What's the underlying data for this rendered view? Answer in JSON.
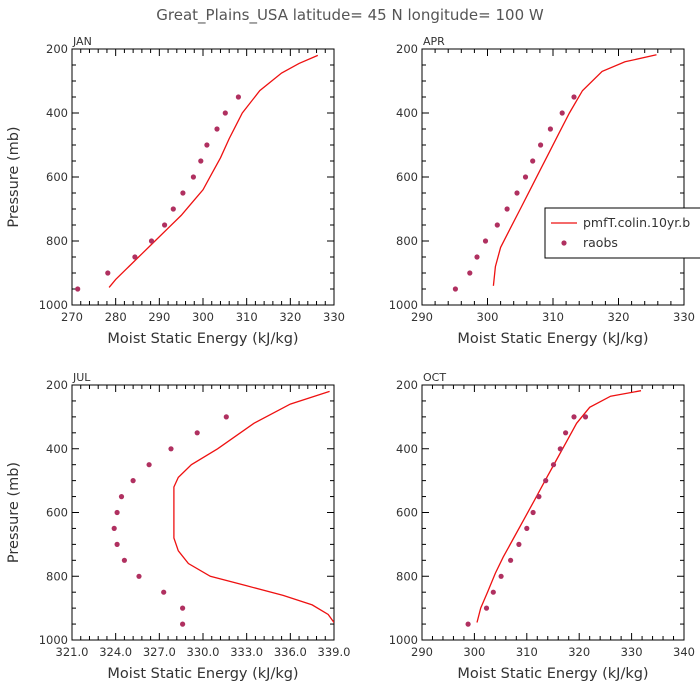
{
  "figure": {
    "title": "Great_Plains_USA   latitude=  45 N longitude=  100 W",
    "model_color": "#ee1111",
    "obs_color": "#b03060"
  },
  "chart_data": [
    {
      "type": "scatter",
      "panel_label": "JAN",
      "xlabel": "Moist Static Energy (kJ/kg)",
      "ylabel": "Pressure (mb)",
      "xlim": [
        270,
        330
      ],
      "ylim": [
        1000,
        200
      ],
      "y_reversed": true,
      "xticks": [
        270,
        280,
        290,
        300,
        310,
        320,
        330
      ],
      "xtick_labels": [
        "270",
        "280",
        "290",
        "300",
        "310",
        "320",
        "330"
      ],
      "yticks": [
        200,
        400,
        600,
        800,
        1000
      ],
      "ytick_labels": [
        "200",
        "400",
        "600",
        "800",
        "1000"
      ],
      "series": [
        {
          "name": "pmfT.colin.10yr.b",
          "kind": "line",
          "x": [
            278.5,
            280,
            283,
            286,
            289,
            292,
            295,
            297.5,
            300,
            302,
            304,
            306,
            309,
            313,
            318,
            322,
            326.3
          ],
          "y": [
            945,
            920,
            880,
            840,
            800,
            760,
            720,
            680,
            640,
            590,
            540,
            480,
            400,
            330,
            275,
            245,
            220
          ]
        },
        {
          "name": "raobs",
          "kind": "points",
          "x": [
            271.3,
            278.2,
            284.4,
            288.2,
            291.2,
            293.2,
            295.4,
            297.8,
            299.5,
            300.9,
            303.2,
            305.1,
            308.1
          ],
          "y": [
            950,
            900,
            850,
            800,
            750,
            700,
            650,
            600,
            550,
            500,
            450,
            400,
            350
          ]
        }
      ]
    },
    {
      "type": "scatter",
      "panel_label": "APR",
      "xlabel": "Moist Static Energy (kJ/kg)",
      "ylabel": "",
      "xlim": [
        290,
        330
      ],
      "ylim": [
        1000,
        200
      ],
      "y_reversed": true,
      "xticks": [
        290,
        300,
        310,
        320,
        330
      ],
      "xtick_labels": [
        "290",
        "300",
        "310",
        "320",
        "330"
      ],
      "yticks": [
        200,
        400,
        600,
        800,
        1000
      ],
      "ytick_labels": [
        "200",
        "400",
        "600",
        "800",
        "1000"
      ],
      "legend": {
        "placement": "right",
        "entries": [
          {
            "label": "pmfT.colin.10yr.b",
            "kind": "line"
          },
          {
            "label": "raobs",
            "kind": "points"
          }
        ]
      },
      "series": [
        {
          "name": "pmfT.colin.10yr.b",
          "kind": "line",
          "x": [
            300.9,
            301.2,
            302,
            303.5,
            305,
            306.5,
            308,
            309.5,
            311,
            312.5,
            314.5,
            317.5,
            321,
            325.8
          ],
          "y": [
            940,
            880,
            820,
            760,
            700,
            640,
            580,
            520,
            460,
            400,
            330,
            270,
            240,
            218
          ]
        },
        {
          "name": "raobs",
          "kind": "points",
          "x": [
            295.1,
            297.3,
            298.4,
            299.7,
            301.5,
            303.0,
            304.5,
            305.8,
            306.9,
            308.1,
            309.6,
            311.4,
            313.2
          ],
          "y": [
            950,
            900,
            850,
            800,
            750,
            700,
            650,
            600,
            550,
            500,
            450,
            400,
            350
          ]
        }
      ]
    },
    {
      "type": "scatter",
      "panel_label": "JUL",
      "xlabel": "Moist Static Energy (kJ/kg)",
      "ylabel": "Pressure (mb)",
      "xlim": [
        321,
        339
      ],
      "ylim": [
        1000,
        200
      ],
      "y_reversed": true,
      "xticks": [
        321,
        324,
        327,
        330,
        333,
        336,
        339
      ],
      "xtick_labels": [
        "321.0",
        "324.0",
        "327.0",
        "330.0",
        "333.0",
        "336.0",
        "339.0"
      ],
      "yticks": [
        200,
        400,
        600,
        800,
        1000
      ],
      "ytick_labels": [
        "200",
        "400",
        "600",
        "800",
        "1000"
      ],
      "series": [
        {
          "name": "pmfT.colin.10yr.b",
          "kind": "line",
          "x": [
            339,
            338.6,
            337.5,
            335.5,
            333,
            330.5,
            329,
            328.3,
            328.0,
            328.0,
            328.0,
            328.3,
            329.2,
            331,
            333.5,
            336,
            338.7
          ],
          "y": [
            945,
            920,
            890,
            860,
            830,
            800,
            760,
            720,
            680,
            600,
            520,
            490,
            450,
            400,
            320,
            260,
            220
          ]
        },
        {
          "name": "raobs",
          "kind": "points",
          "x": [
            328.6,
            328.6,
            327.3,
            325.6,
            324.6,
            324.1,
            323.9,
            324.1,
            324.4,
            325.2,
            326.3,
            327.8,
            329.6,
            331.6
          ],
          "y": [
            950,
            900,
            850,
            800,
            750,
            700,
            650,
            600,
            550,
            500,
            450,
            400,
            350,
            300
          ]
        }
      ]
    },
    {
      "type": "scatter",
      "panel_label": "OCT",
      "xlabel": "Moist Static Energy (kJ/kg)",
      "ylabel": "",
      "xlim": [
        290,
        340
      ],
      "ylim": [
        1000,
        200
      ],
      "y_reversed": true,
      "xticks": [
        290,
        300,
        310,
        320,
        330,
        340
      ],
      "xtick_labels": [
        "290",
        "300",
        "310",
        "320",
        "330",
        "340"
      ],
      "yticks": [
        200,
        400,
        600,
        800,
        1000
      ],
      "ytick_labels": [
        "200",
        "400",
        "600",
        "800",
        "1000"
      ],
      "series": [
        {
          "name": "pmfT.colin.10yr.b",
          "kind": "line",
          "x": [
            300.5,
            301.2,
            302.5,
            304,
            305.5,
            307.5,
            309.5,
            311.5,
            313.5,
            315.5,
            317.5,
            319.5,
            322,
            326,
            331.8
          ],
          "y": [
            945,
            900,
            850,
            790,
            740,
            680,
            620,
            560,
            500,
            440,
            380,
            320,
            270,
            235,
            218
          ]
        },
        {
          "name": "raobs",
          "kind": "points",
          "x": [
            298.8,
            302.3,
            303.6,
            305.1,
            306.9,
            308.5,
            310.0,
            311.2,
            312.3,
            313.6,
            315.1,
            316.4,
            317.4,
            319.0,
            321.2
          ],
          "y": [
            950,
            900,
            850,
            800,
            750,
            700,
            650,
            600,
            550,
            500,
            450,
            400,
            350,
            300,
            300
          ]
        }
      ]
    }
  ]
}
